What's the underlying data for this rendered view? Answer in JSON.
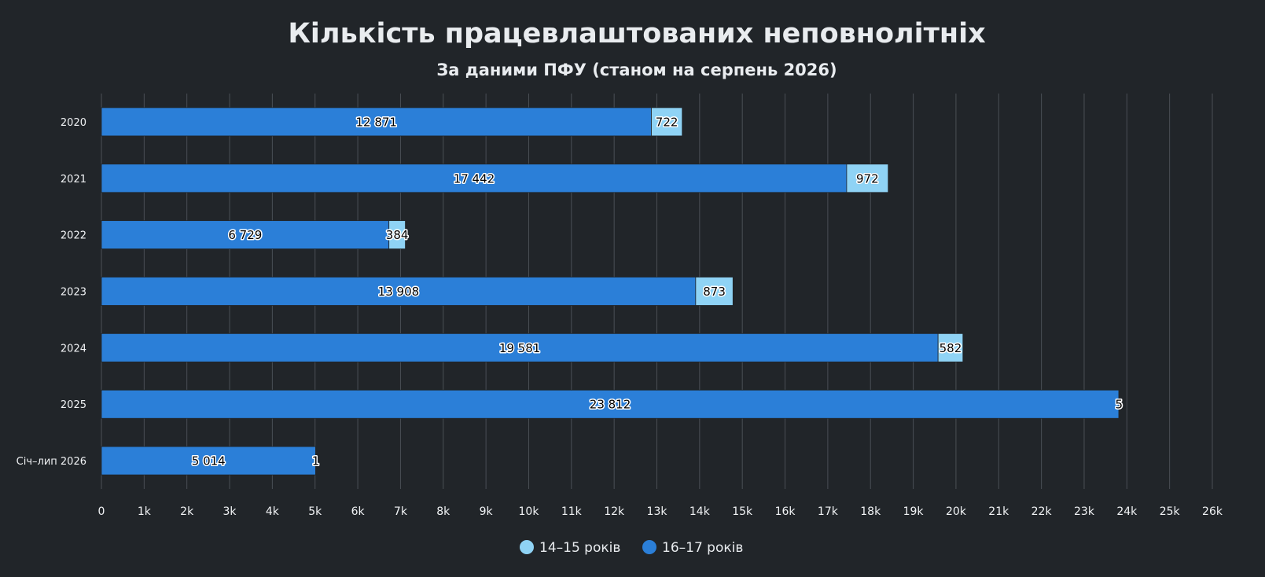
{
  "chart_data": {
    "type": "bar",
    "orientation": "horizontal",
    "stacked": true,
    "title": "Кількість працевлаштованих неповнолітніх",
    "subtitle": "За даними ПФУ (станом на серпень 2026)",
    "categories": [
      "2020",
      "2021",
      "2022",
      "2023",
      "2024",
      "2025",
      "Січ–лип 2026"
    ],
    "series": [
      {
        "name": "16–17 років",
        "color": "#2b7fd8",
        "values": [
          12871,
          17442,
          6729,
          13908,
          19581,
          23812,
          5014
        ],
        "labels": [
          "12 871",
          "17 442",
          "6 729",
          "13 908",
          "19 581",
          "23 812",
          "5 014"
        ]
      },
      {
        "name": "14–15 років",
        "color": "#8fd3f5",
        "values": [
          722,
          972,
          384,
          873,
          582,
          5,
          1
        ],
        "labels": [
          "722",
          "972",
          "384",
          "873",
          "582",
          "5",
          "1"
        ]
      }
    ],
    "legend_order": [
      "14–15 років",
      "16–17 років"
    ],
    "xlim": [
      0,
      26000
    ],
    "x_ticks": [
      0,
      1000,
      2000,
      3000,
      4000,
      5000,
      6000,
      7000,
      8000,
      9000,
      10000,
      11000,
      12000,
      13000,
      14000,
      15000,
      16000,
      17000,
      18000,
      19000,
      20000,
      21000,
      22000,
      23000,
      24000,
      25000,
      26000
    ],
    "x_tick_labels": [
      "0",
      "1k",
      "2k",
      "3k",
      "4k",
      "5k",
      "6k",
      "7k",
      "8k",
      "9k",
      "10k",
      "11k",
      "12k",
      "13k",
      "14k",
      "15k",
      "16k",
      "17k",
      "18k",
      "19k",
      "20k",
      "21k",
      "22k",
      "23k",
      "24k",
      "25k",
      "26k"
    ],
    "grid": true,
    "legend_position": "bottom-center"
  }
}
